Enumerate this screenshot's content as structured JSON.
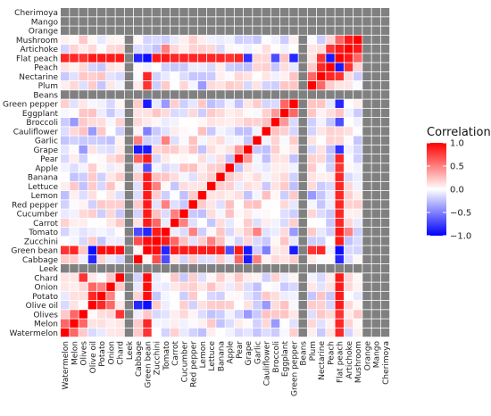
{
  "chart_data": {
    "type": "heatmap",
    "title": "",
    "xlabel": "",
    "ylabel": "",
    "variables": [
      "Watermelon",
      "Melon",
      "Olives",
      "Olive oil",
      "Potato",
      "Onion",
      "Chard",
      "Leek",
      "Cabbage",
      "Green bean",
      "Zucchini",
      "Tomato",
      "Carrot",
      "Cucumber",
      "Red pepper",
      "Lemon",
      "Lettuce",
      "Banana",
      "Apple",
      "Pear",
      "Grape",
      "Garlic",
      "Cauliflower",
      "Broccoli",
      "Eggplant",
      "Green pepper",
      "Beans",
      "Plum",
      "Nectarine",
      "Peach",
      "Flat peach",
      "Artichoke",
      "Mushroom",
      "Orange",
      "Mango",
      "Cherimoya"
    ],
    "na_variables": [
      "Leek",
      "Beans",
      "Orange",
      "Mango",
      "Cherimoya"
    ],
    "na_color": "#808080",
    "colorscale": {
      "low": "#0000ff",
      "mid": "#ffffff",
      "high": "#ff0000",
      "range": [
        -1,
        1
      ]
    },
    "grid": false,
    "legend": {
      "title": "Correlation",
      "position": "right",
      "ticks": [
        {
          "value": 1.0,
          "label": "1.0"
        },
        {
          "value": 0.5,
          "label": "0.5"
        },
        {
          "value": 0.0,
          "label": "0.0"
        },
        {
          "value": -0.5,
          "label": "−0.5"
        },
        {
          "value": -1.0,
          "label": "−1.0"
        }
      ]
    },
    "notable_correlations": [
      {
        "a": "Green bean",
        "b": "Flat peach",
        "value": -0.95
      },
      {
        "a": "Green bean",
        "b": "Grape",
        "value": -0.9
      },
      {
        "a": "Green bean",
        "b": "Olive oil",
        "value": -0.95
      },
      {
        "a": "Green bean",
        "b": "Tomato",
        "value": -0.85
      },
      {
        "a": "Green bean",
        "b": "Potato",
        "value": 0.95
      },
      {
        "a": "Green bean",
        "b": "Onion",
        "value": 0.95
      },
      {
        "a": "Green bean",
        "b": "Chard",
        "value": 0.95
      },
      {
        "a": "Green bean",
        "b": "Zucchini",
        "value": 0.95
      },
      {
        "a": "Green bean",
        "b": "Carrot",
        "value": 0.9
      },
      {
        "a": "Green bean",
        "b": "Cucumber",
        "value": 0.9
      },
      {
        "a": "Green bean",
        "b": "Red pepper",
        "value": 0.9
      },
      {
        "a": "Green bean",
        "b": "Lemon",
        "value": 0.9
      },
      {
        "a": "Green bean",
        "b": "Lettuce",
        "value": 0.9
      },
      {
        "a": "Green bean",
        "b": "Banana",
        "value": 0.9
      },
      {
        "a": "Green bean",
        "b": "Pear",
        "value": 0.9
      },
      {
        "a": "Green bean",
        "b": "Melon",
        "value": 0.85
      },
      {
        "a": "Green bean",
        "b": "Watermelon",
        "value": 0.8
      },
      {
        "a": "Green bean",
        "b": "Green pepper",
        "value": -0.9
      },
      {
        "a": "Green bean",
        "b": "Apple",
        "value": -0.7
      },
      {
        "a": "Green bean",
        "b": "Cauliflower",
        "value": -0.5
      },
      {
        "a": "Green bean",
        "b": "Nectarine",
        "value": 0.85
      },
      {
        "a": "Green bean",
        "b": "Plum",
        "value": 0.8
      },
      {
        "a": "Flat peach",
        "b": "Peach",
        "value": -0.9
      },
      {
        "a": "Flat peach",
        "b": "Nectarine",
        "value": 0.8
      },
      {
        "a": "Flat peach",
        "b": "Green pepper",
        "value": -0.85
      },
      {
        "a": "Flat peach",
        "b": "Broccoli",
        "value": -0.7
      },
      {
        "a": "Flat peach",
        "b": "Grape",
        "value": -0.8
      },
      {
        "a": "Flat peach",
        "b": "Cabbage",
        "value": -0.85
      },
      {
        "a": "Flat peach",
        "b": "Zucchini",
        "value": 0.9
      },
      {
        "a": "Flat peach",
        "b": "Tomato",
        "value": 0.9
      },
      {
        "a": "Flat peach",
        "b": "Carrot",
        "value": 0.85
      },
      {
        "a": "Flat peach",
        "b": "Cucumber",
        "value": 0.85
      },
      {
        "a": "Flat peach",
        "b": "Red pepper",
        "value": 0.85
      },
      {
        "a": "Flat peach",
        "b": "Lemon",
        "value": 0.85
      },
      {
        "a": "Flat peach",
        "b": "Lettuce",
        "value": 0.85
      },
      {
        "a": "Flat peach",
        "b": "Banana",
        "value": 0.85
      },
      {
        "a": "Flat peach",
        "b": "Pear",
        "value": 0.85
      },
      {
        "a": "Flat peach",
        "b": "Apple",
        "value": 0.8
      },
      {
        "a": "Flat peach",
        "b": "Chard",
        "value": 0.9
      },
      {
        "a": "Flat peach",
        "b": "Onion",
        "value": 0.9
      },
      {
        "a": "Flat peach",
        "b": "Potato",
        "value": 0.9
      },
      {
        "a": "Flat peach",
        "b": "Olive oil",
        "value": 0.9
      },
      {
        "a": "Flat peach",
        "b": "Olives",
        "value": 0.8
      },
      {
        "a": "Flat peach",
        "b": "Melon",
        "value": 0.85
      },
      {
        "a": "Flat peach",
        "b": "Watermelon",
        "value": 0.85
      },
      {
        "a": "Flat peach",
        "b": "Artichoke",
        "value": 0.9
      },
      {
        "a": "Flat peach",
        "b": "Mushroom",
        "value": 0.6
      },
      {
        "a": "Cabbage",
        "b": "Grape",
        "value": -0.9
      },
      {
        "a": "Cabbage",
        "b": "Olive oil",
        "value": -0.85
      },
      {
        "a": "Cabbage",
        "b": "Tomato",
        "value": -0.7
      },
      {
        "a": "Cabbage",
        "b": "Zucchini",
        "value": 0.7
      },
      {
        "a": "Cabbage",
        "b": "Garlic",
        "value": 0.5
      },
      {
        "a": "Cabbage",
        "b": "Pear",
        "value": 0.6
      },
      {
        "a": "Zucchini",
        "b": "Tomato",
        "value": 0.9
      },
      {
        "a": "Zucchini",
        "b": "Carrot",
        "value": 0.6
      },
      {
        "a": "Mushroom",
        "b": "Artichoke",
        "value": 0.9
      },
      {
        "a": "Artichoke",
        "b": "Peach",
        "value": 0.8
      },
      {
        "a": "Peach",
        "b": "Nectarine",
        "value": 0.85
      },
      {
        "a": "Nectarine",
        "b": "Plum",
        "value": 0.6
      },
      {
        "a": "Olives",
        "b": "Chard",
        "value": 0.8
      },
      {
        "a": "Olive oil",
        "b": "Potato",
        "value": 0.85
      },
      {
        "a": "Olive oil",
        "b": "Onion",
        "value": 0.6
      },
      {
        "a": "Melon",
        "b": "Olives",
        "value": 0.6
      },
      {
        "a": "Watermelon",
        "b": "Melon",
        "value": 0.6
      },
      {
        "a": "Eggplant",
        "b": "Green pepper",
        "value": 0.6
      },
      {
        "a": "Broccoli",
        "b": "Eggplant",
        "value": 0.4
      },
      {
        "a": "Garlic",
        "b": "Tomato",
        "value": 0.5
      },
      {
        "a": "Grape",
        "b": "Pear",
        "value": 0.4
      },
      {
        "a": "Carrot",
        "b": "Cucumber",
        "value": 0.5
      },
      {
        "a": "Red pepper",
        "b": "Tomato",
        "value": 0.5
      },
      {
        "a": "Lettuce",
        "b": "Zucchini",
        "value": 0.5
      },
      {
        "a": "Potato",
        "b": "Onion",
        "value": 0.5
      },
      {
        "a": "Broccoli",
        "b": "Melon",
        "value": -0.4
      },
      {
        "a": "Grape",
        "b": "Olives",
        "value": -0.4
      },
      {
        "a": "Cauliflower",
        "b": "Olive oil",
        "value": -0.4
      },
      {
        "a": "Green pepper",
        "b": "Tomato",
        "value": -0.4
      },
      {
        "a": "Artichoke",
        "b": "Tomato",
        "value": 0.5
      },
      {
        "a": "Plum",
        "b": "Lemon",
        "value": -0.4
      }
    ]
  }
}
